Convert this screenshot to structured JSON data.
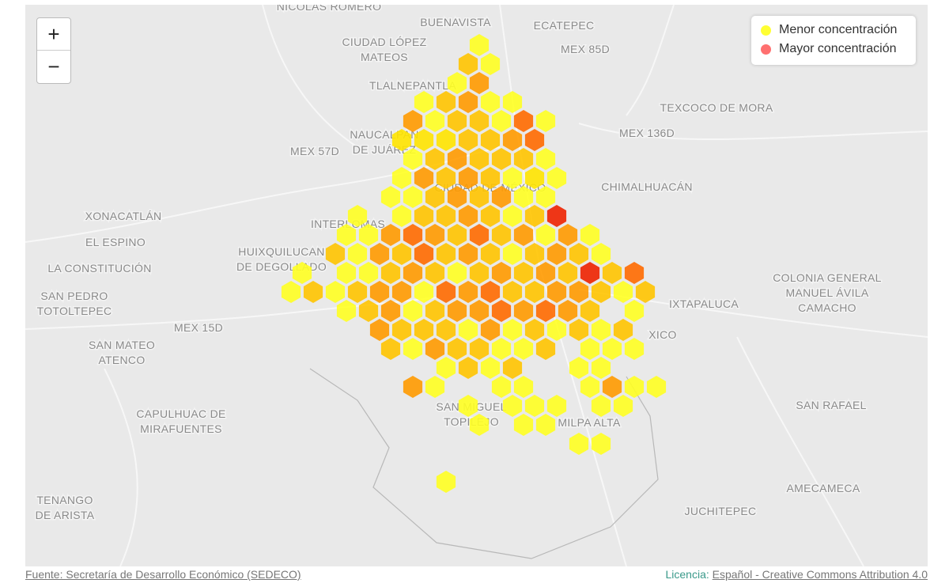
{
  "map": {
    "labels": [
      [
        "NICOLÁS ROMERO"
      ],
      [
        "BUENAVISTA"
      ],
      [
        "ECATEPEC"
      ],
      [
        "CIUDAD LÓPEZ",
        "MATEOS"
      ],
      [
        "MEX 85D"
      ],
      [
        "TLALNEPANTLA"
      ],
      [
        "TEXCOCO DE MORA"
      ],
      [
        "NAUCALPAN",
        "DE JUÁREZ"
      ],
      [
        "MEX 57D"
      ],
      [
        "MEX 136D"
      ],
      [
        "CIUDAD DE MÉXICO"
      ],
      [
        "CHIMALHUACÁN"
      ],
      [
        "XONACATLÁN"
      ],
      [
        "INTERLOMAS"
      ],
      [
        "EL ESPINO"
      ],
      [
        "HUIXQUILUCAN",
        "DE DEGOLLADO"
      ],
      [
        "LA CONSTITUCIÓN"
      ],
      [
        "SAN PEDRO",
        "TOTOLTEPEC"
      ],
      [
        "COLONIA GENERAL",
        "MANUEL ÁVILA",
        "CAMACHO"
      ],
      [
        "IXTAPALUCA"
      ],
      [
        "MEX 15D"
      ],
      [
        "XICO"
      ],
      [
        "SAN MATEO",
        "ATENCO"
      ],
      [
        "CAPULHUAC DE",
        "MIRAFUENTES"
      ],
      [
        "SAN MIGUEL",
        "TOPILEJO"
      ],
      [
        "MILPA ALTA"
      ],
      [
        "SAN RAFAEL"
      ],
      [
        "TENANGO",
        "DE ARISTA"
      ],
      [
        "AMECAMECA"
      ],
      [
        "JUCHITEPEC"
      ]
    ],
    "zoom_in": "+",
    "zoom_out": "−",
    "legend": [
      {
        "label": "Menor concentración",
        "color": "#ffff33"
      },
      {
        "label": "Mayor concentración",
        "color": "#ff7070"
      }
    ],
    "source": "Fuente: Secretaría de Desarrollo Económico (SEDECO)",
    "license_label": "Licencia:",
    "license": "Español - Creative Commons Attribution 4.0"
  }
}
